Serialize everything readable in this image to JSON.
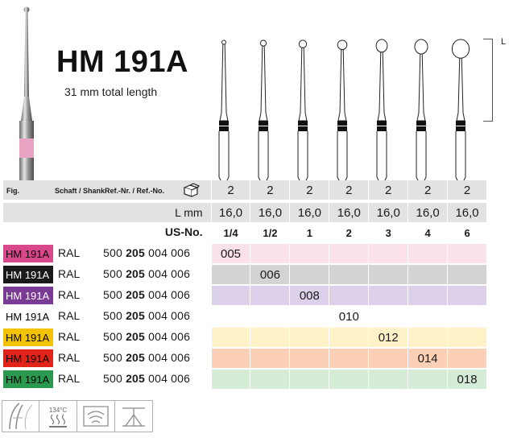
{
  "header": {
    "title": "HM 191A",
    "subtitle": "31 mm total length",
    "length_label": "L"
  },
  "table": {
    "columns": {
      "fig_label": "Fig.",
      "shank_label": "Schaft / Shank",
      "ref_label": "Ref.-Nr. / Ref.-No.",
      "package_icon": "package-icon"
    },
    "fig_row": {
      "label": "",
      "values": [
        "2",
        "2",
        "2",
        "2",
        "2",
        "2",
        "2"
      ]
    },
    "lmm_row": {
      "label": "L mm",
      "values": [
        "16,0",
        "16,0",
        "16,0",
        "16,0",
        "16,0",
        "16,0",
        "16,0"
      ]
    },
    "us_row": {
      "label": "US-No.",
      "values": [
        "1/4",
        "1/2",
        "1",
        "2",
        "3",
        "4",
        "6"
      ]
    },
    "products": [
      {
        "name": "HM 191A",
        "shank": "RAL",
        "ref_prefix": "500",
        "ref_bold": "205",
        "ref_suffix": "004 006",
        "badge_bg": "#d8488a",
        "badge_fg": "#000000",
        "row_bg": "#fbe1ea",
        "cells": [
          "005",
          "",
          "",
          "",
          "",
          "",
          ""
        ]
      },
      {
        "name": "HM 191A",
        "shank": "RAL",
        "ref_prefix": "500",
        "ref_bold": "205",
        "ref_suffix": "004 006",
        "badge_bg": "#1a1a1a",
        "badge_fg": "#ffffff",
        "row_bg": "#d3d3d3",
        "cells": [
          "",
          "006",
          "",
          "",
          "",
          "",
          ""
        ]
      },
      {
        "name": "HM 191A",
        "shank": "RAL",
        "ref_prefix": "500",
        "ref_bold": "205",
        "ref_suffix": "004 006",
        "badge_bg": "#7a3b95",
        "badge_fg": "#ffffff",
        "row_bg": "#ddd0ea",
        "cells": [
          "",
          "",
          "008",
          "",
          "",
          "",
          ""
        ]
      },
      {
        "name": "HM 191A",
        "shank": "RAL",
        "ref_prefix": "500",
        "ref_bold": "205",
        "ref_suffix": "004 006",
        "badge_bg": "#ffffff",
        "badge_fg": "#000000",
        "row_bg": "#ffffff",
        "cells": [
          "",
          "",
          "",
          "010",
          "",
          "",
          ""
        ]
      },
      {
        "name": "HM 191A",
        "shank": "RAL",
        "ref_prefix": "500",
        "ref_bold": "205",
        "ref_suffix": "004 006",
        "badge_bg": "#f3c200",
        "badge_fg": "#000000",
        "row_bg": "#fff1c8",
        "cells": [
          "",
          "",
          "",
          "",
          "012",
          "",
          ""
        ]
      },
      {
        "name": "HM 191A",
        "shank": "RAL",
        "ref_prefix": "500",
        "ref_bold": "205",
        "ref_suffix": "004 006",
        "badge_bg": "#e2231a",
        "badge_fg": "#000000",
        "row_bg": "#fcd0b6",
        "cells": [
          "",
          "",
          "",
          "",
          "",
          "014",
          ""
        ]
      },
      {
        "name": "HM 191A",
        "shank": "RAL",
        "ref_prefix": "500",
        "ref_bold": "205",
        "ref_suffix": "004 006",
        "badge_bg": "#2a9a4f",
        "badge_fg": "#000000",
        "row_bg": "#d4ebd6",
        "cells": [
          "",
          "",
          "",
          "",
          "",
          "",
          "018"
        ]
      }
    ]
  },
  "footer": {
    "icons": [
      "bur-profile-icon",
      "sterilization-icon",
      "cleaning-icon",
      "usage-icon"
    ],
    "temperature": "134°C"
  }
}
